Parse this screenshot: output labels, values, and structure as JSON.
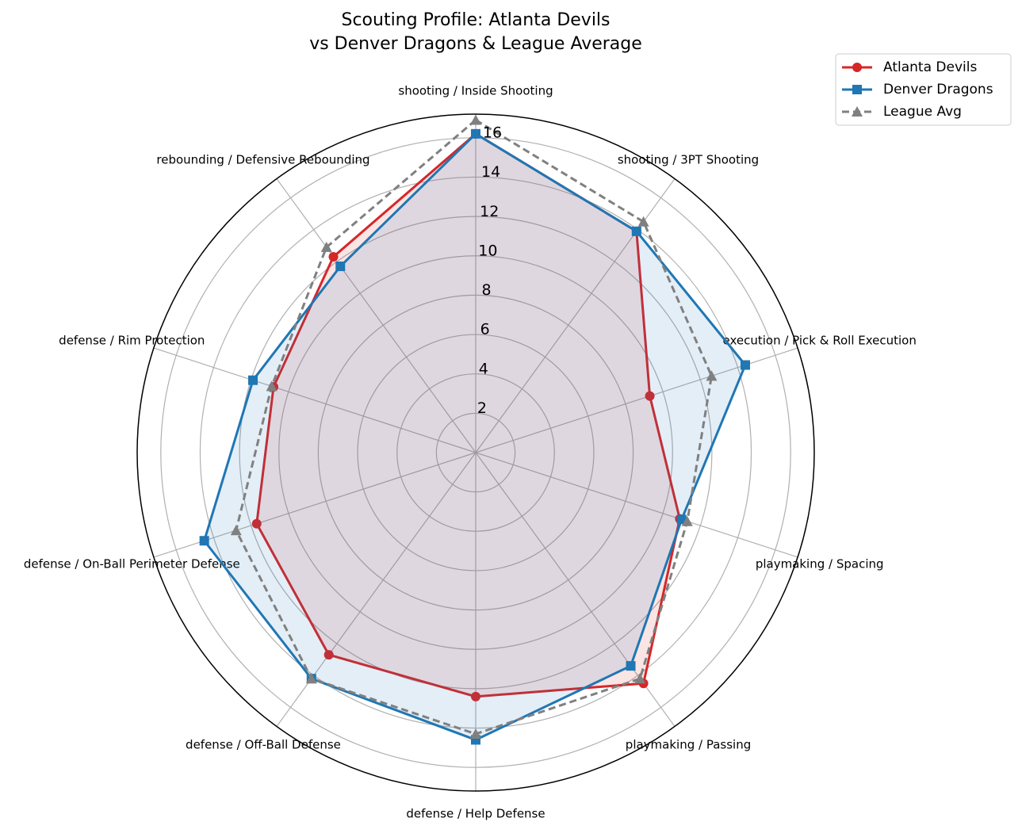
{
  "chart_data": {
    "type": "radar",
    "title": [
      "Scouting Profile: Atlanta Devils",
      "vs Denver Dragons & League Average"
    ],
    "categories": [
      "shooting / Inside Shooting",
      "shooting / 3PT Shooting",
      "execution / Pick & Roll Execution",
      "playmaking / Spacing",
      "playmaking / Passing",
      "defense / Help Defense",
      "defense / Off-Ball Defense",
      "defense / On-Ball Perimeter Defense",
      "defense / Rim Protection",
      "rebounding / Defensive Rebounding"
    ],
    "series": [
      {
        "name": "Atlanta Devils",
        "color": "#d62728",
        "marker": "circle",
        "dashed": false,
        "fill": true,
        "values": [
          16.2,
          13.9,
          9.3,
          10.9,
          14.5,
          12.4,
          12.7,
          11.7,
          10.8,
          12.3
        ]
      },
      {
        "name": "Denver Dragons",
        "color": "#1f77b4",
        "marker": "square",
        "dashed": false,
        "fill": true,
        "values": [
          16.2,
          13.9,
          14.4,
          11.0,
          13.4,
          14.6,
          14.2,
          14.5,
          11.9,
          11.7
        ]
      },
      {
        "name": "League Avg",
        "color": "#808080",
        "marker": "triangle",
        "dashed": true,
        "fill": false,
        "values": [
          16.9,
          14.5,
          12.6,
          11.3,
          14.2,
          14.3,
          14.2,
          12.8,
          10.9,
          12.9
        ]
      }
    ],
    "ylim": [
      0,
      17.2
    ],
    "yticks": [
      2,
      4,
      6,
      8,
      10,
      12,
      14,
      16
    ],
    "grid": true,
    "legend": "upper right"
  }
}
